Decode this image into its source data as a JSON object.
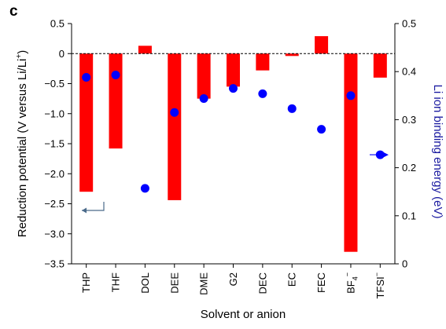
{
  "chart_data": {
    "type": "bar",
    "panel_label": "c",
    "categories": [
      "THP",
      "THF",
      "DOL",
      "DEE",
      "DME",
      "G2",
      "DEC",
      "EC",
      "FEC",
      "BF4−",
      "TFSI−"
    ],
    "category_labels": [
      {
        "base": "THP",
        "sub": "",
        "sup": ""
      },
      {
        "base": "THF",
        "sub": "",
        "sup": ""
      },
      {
        "base": "DOL",
        "sub": "",
        "sup": ""
      },
      {
        "base": "DEE",
        "sub": "",
        "sup": ""
      },
      {
        "base": "DME",
        "sub": "",
        "sup": ""
      },
      {
        "base": "G2",
        "sub": "",
        "sup": ""
      },
      {
        "base": "DEC",
        "sub": "",
        "sup": ""
      },
      {
        "base": "EC",
        "sub": "",
        "sup": ""
      },
      {
        "base": "FEC",
        "sub": "",
        "sup": ""
      },
      {
        "base": "BF",
        "sub": "4",
        "sup": "−"
      },
      {
        "base": "TFSI",
        "sub": "",
        "sup": "−"
      }
    ],
    "series": [
      {
        "axis": "left",
        "kind": "bar",
        "color": "#ff0000",
        "values": [
          -2.3,
          -1.58,
          0.13,
          -2.44,
          -0.75,
          -0.55,
          -0.28,
          -0.04,
          0.29,
          -3.3,
          -0.4
        ]
      },
      {
        "axis": "right",
        "kind": "scatter",
        "color": "#0000ff",
        "values": [
          0.388,
          0.393,
          0.157,
          0.315,
          0.344,
          0.365,
          0.354,
          0.323,
          0.28,
          0.35,
          0.227
        ]
      }
    ],
    "xlabel": "Solvent or anion",
    "ylabel_left": {
      "pre": "Reduction potential (V versus Li/Li",
      "sup": "+",
      "post": ")"
    },
    "ylabel_right": "Li ion binding energy (eV)",
    "ylim_left": [
      -3.5,
      0.5
    ],
    "ylim_right": [
      0,
      0.5
    ],
    "yticks_left": [
      "0.5",
      "0",
      "−0.5",
      "−1.0",
      "−1.5",
      "−2.0",
      "−2.5",
      "−3.0",
      "−3.5"
    ],
    "yticks_left_values": [
      0.5,
      0,
      -0.5,
      -1.0,
      -1.5,
      -2.0,
      -2.5,
      -3.0,
      -3.5
    ],
    "yticks_right": [
      "0.5",
      "0.4",
      "0.3",
      "0.2",
      "0.1",
      "0"
    ],
    "yticks_right_values": [
      0.5,
      0.4,
      0.3,
      0.2,
      0.1,
      0
    ],
    "reference_line": 0,
    "grid": false,
    "colors": {
      "bars": "#ff0000",
      "points": "#0000ff",
      "left_arrow": "#4a6a8a",
      "right_arrow": "#0000ff",
      "right_label": "#1a1aa0"
    }
  }
}
